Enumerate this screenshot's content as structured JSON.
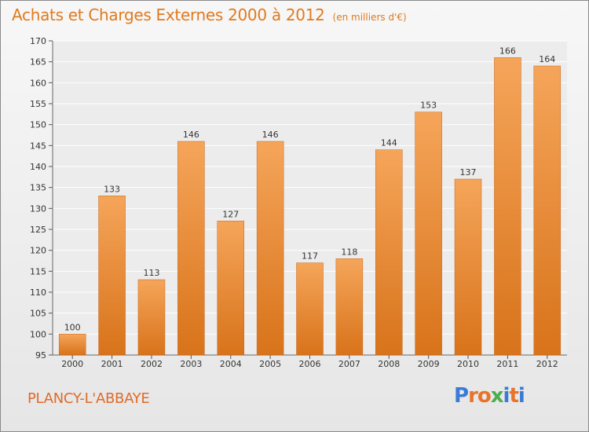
{
  "header": {
    "title": "Achats et Charges Externes 2000 à 2012",
    "unit": "(en milliers d'€)"
  },
  "footer": {
    "place": "PLANCY-L'ABBAYE",
    "logo_text": "Proxiti"
  },
  "colors": {
    "bar_top": "#f5a55a",
    "bar_bottom": "#d8731a",
    "accent": "#e07a1e",
    "logo_letters": [
      "#3a7bd5",
      "#e8742a",
      "#e8742a",
      "#4cae4c",
      "#3a7bd5",
      "#e8742a",
      "#3a7bd5"
    ]
  },
  "chart_data": {
    "type": "bar",
    "title": "Achats et Charges Externes 2000 à 2012",
    "subtitle": "(en milliers d'€)",
    "categories": [
      "2000",
      "2001",
      "2002",
      "2003",
      "2004",
      "2005",
      "2006",
      "2007",
      "2008",
      "2009",
      "2010",
      "2011",
      "2012"
    ],
    "values": [
      100,
      133,
      113,
      146,
      127,
      146,
      117,
      118,
      144,
      153,
      137,
      166,
      164
    ],
    "ylim": [
      95,
      170
    ],
    "yticks": [
      95,
      100,
      105,
      110,
      115,
      120,
      125,
      130,
      135,
      140,
      145,
      150,
      155,
      160,
      165,
      170
    ],
    "grid": true,
    "legend": "none"
  }
}
